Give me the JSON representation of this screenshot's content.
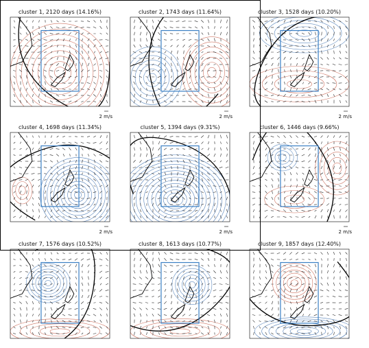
{
  "panels": [
    {
      "title": "cluster 1, 2120 days (14.16%)",
      "scale": "2 m/s"
    },
    {
      "title": "cluster 2, 1743 days (11.64%)",
      "scale": "2 m/s"
    },
    {
      "title": "cluster 3, 1528 days (10.20%)",
      "scale": "2 m/s"
    },
    {
      "title": "cluster 4, 1698 days (11.34%)",
      "scale": "2 m/s"
    },
    {
      "title": "cluster 5, 1394 days (9.31%)",
      "scale": "2 m/s"
    },
    {
      "title": "cluster 6, 1446 days (9.66%)",
      "scale": "2 m/s"
    },
    {
      "title": "cluster 7, 1576 days (10.52%)"
    },
    {
      "title": "cluster 8, 1613 days (10.77%)"
    },
    {
      "title": "cluster 9, 1857 days (12.40%)"
    }
  ]
}
